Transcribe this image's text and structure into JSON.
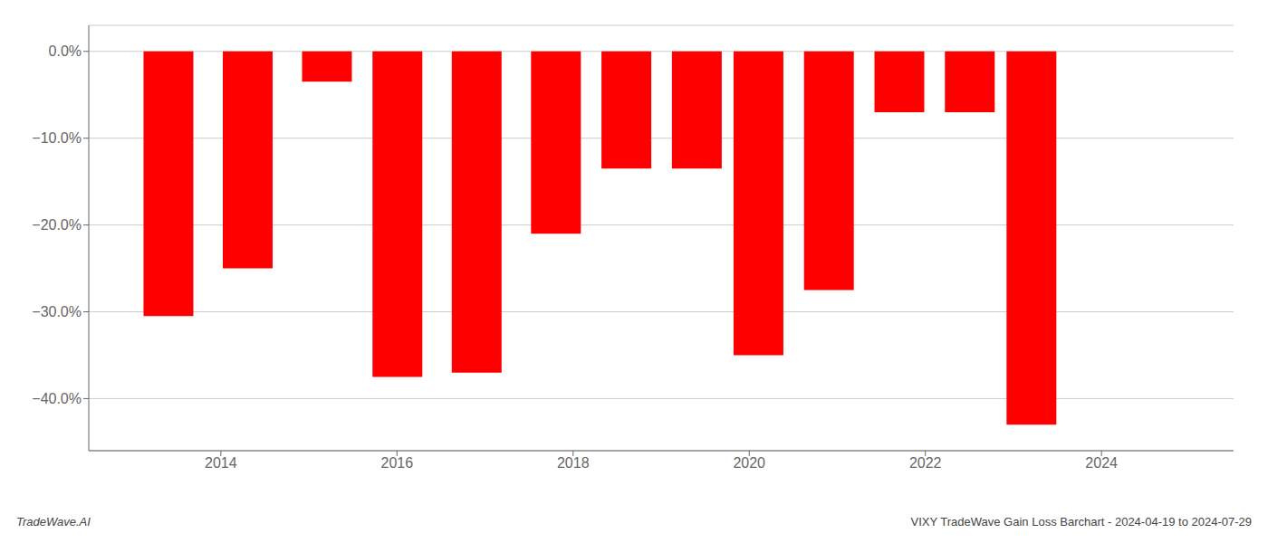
{
  "chart_data": {
    "type": "bar",
    "title": "VIXY TradeWave Gain Loss Barchart - 2024-04-19 to 2024-07-29",
    "annotations": [
      "TradeWave.AI"
    ],
    "x": [
      2013.4,
      2014.3,
      2015.2,
      2016.0,
      2016.9,
      2017.8,
      2018.6,
      2019.4,
      2020.1,
      2020.9,
      2021.7,
      2022.5,
      2023.2
    ],
    "values": [
      -30.5,
      -25.0,
      -3.5,
      -37.5,
      -37.0,
      -21.0,
      -13.5,
      -13.5,
      -35.0,
      -27.5,
      -7.0,
      -7.0,
      -43.0
    ],
    "color": "#ff0000",
    "xlim": [
      2012.5,
      2025.5
    ],
    "xticks": [
      2014,
      2016,
      2018,
      2020,
      2022,
      2024
    ],
    "ylim": [
      -46,
      3
    ],
    "yticks": [
      {
        "value": 0.0,
        "label": "0.0%"
      },
      {
        "value": -10.0,
        "label": "−10.0%"
      },
      {
        "value": -20.0,
        "label": "−20.0%"
      },
      {
        "value": -30.0,
        "label": "−30.0%"
      },
      {
        "value": -40.0,
        "label": "−40.0%"
      }
    ],
    "grid": true
  }
}
